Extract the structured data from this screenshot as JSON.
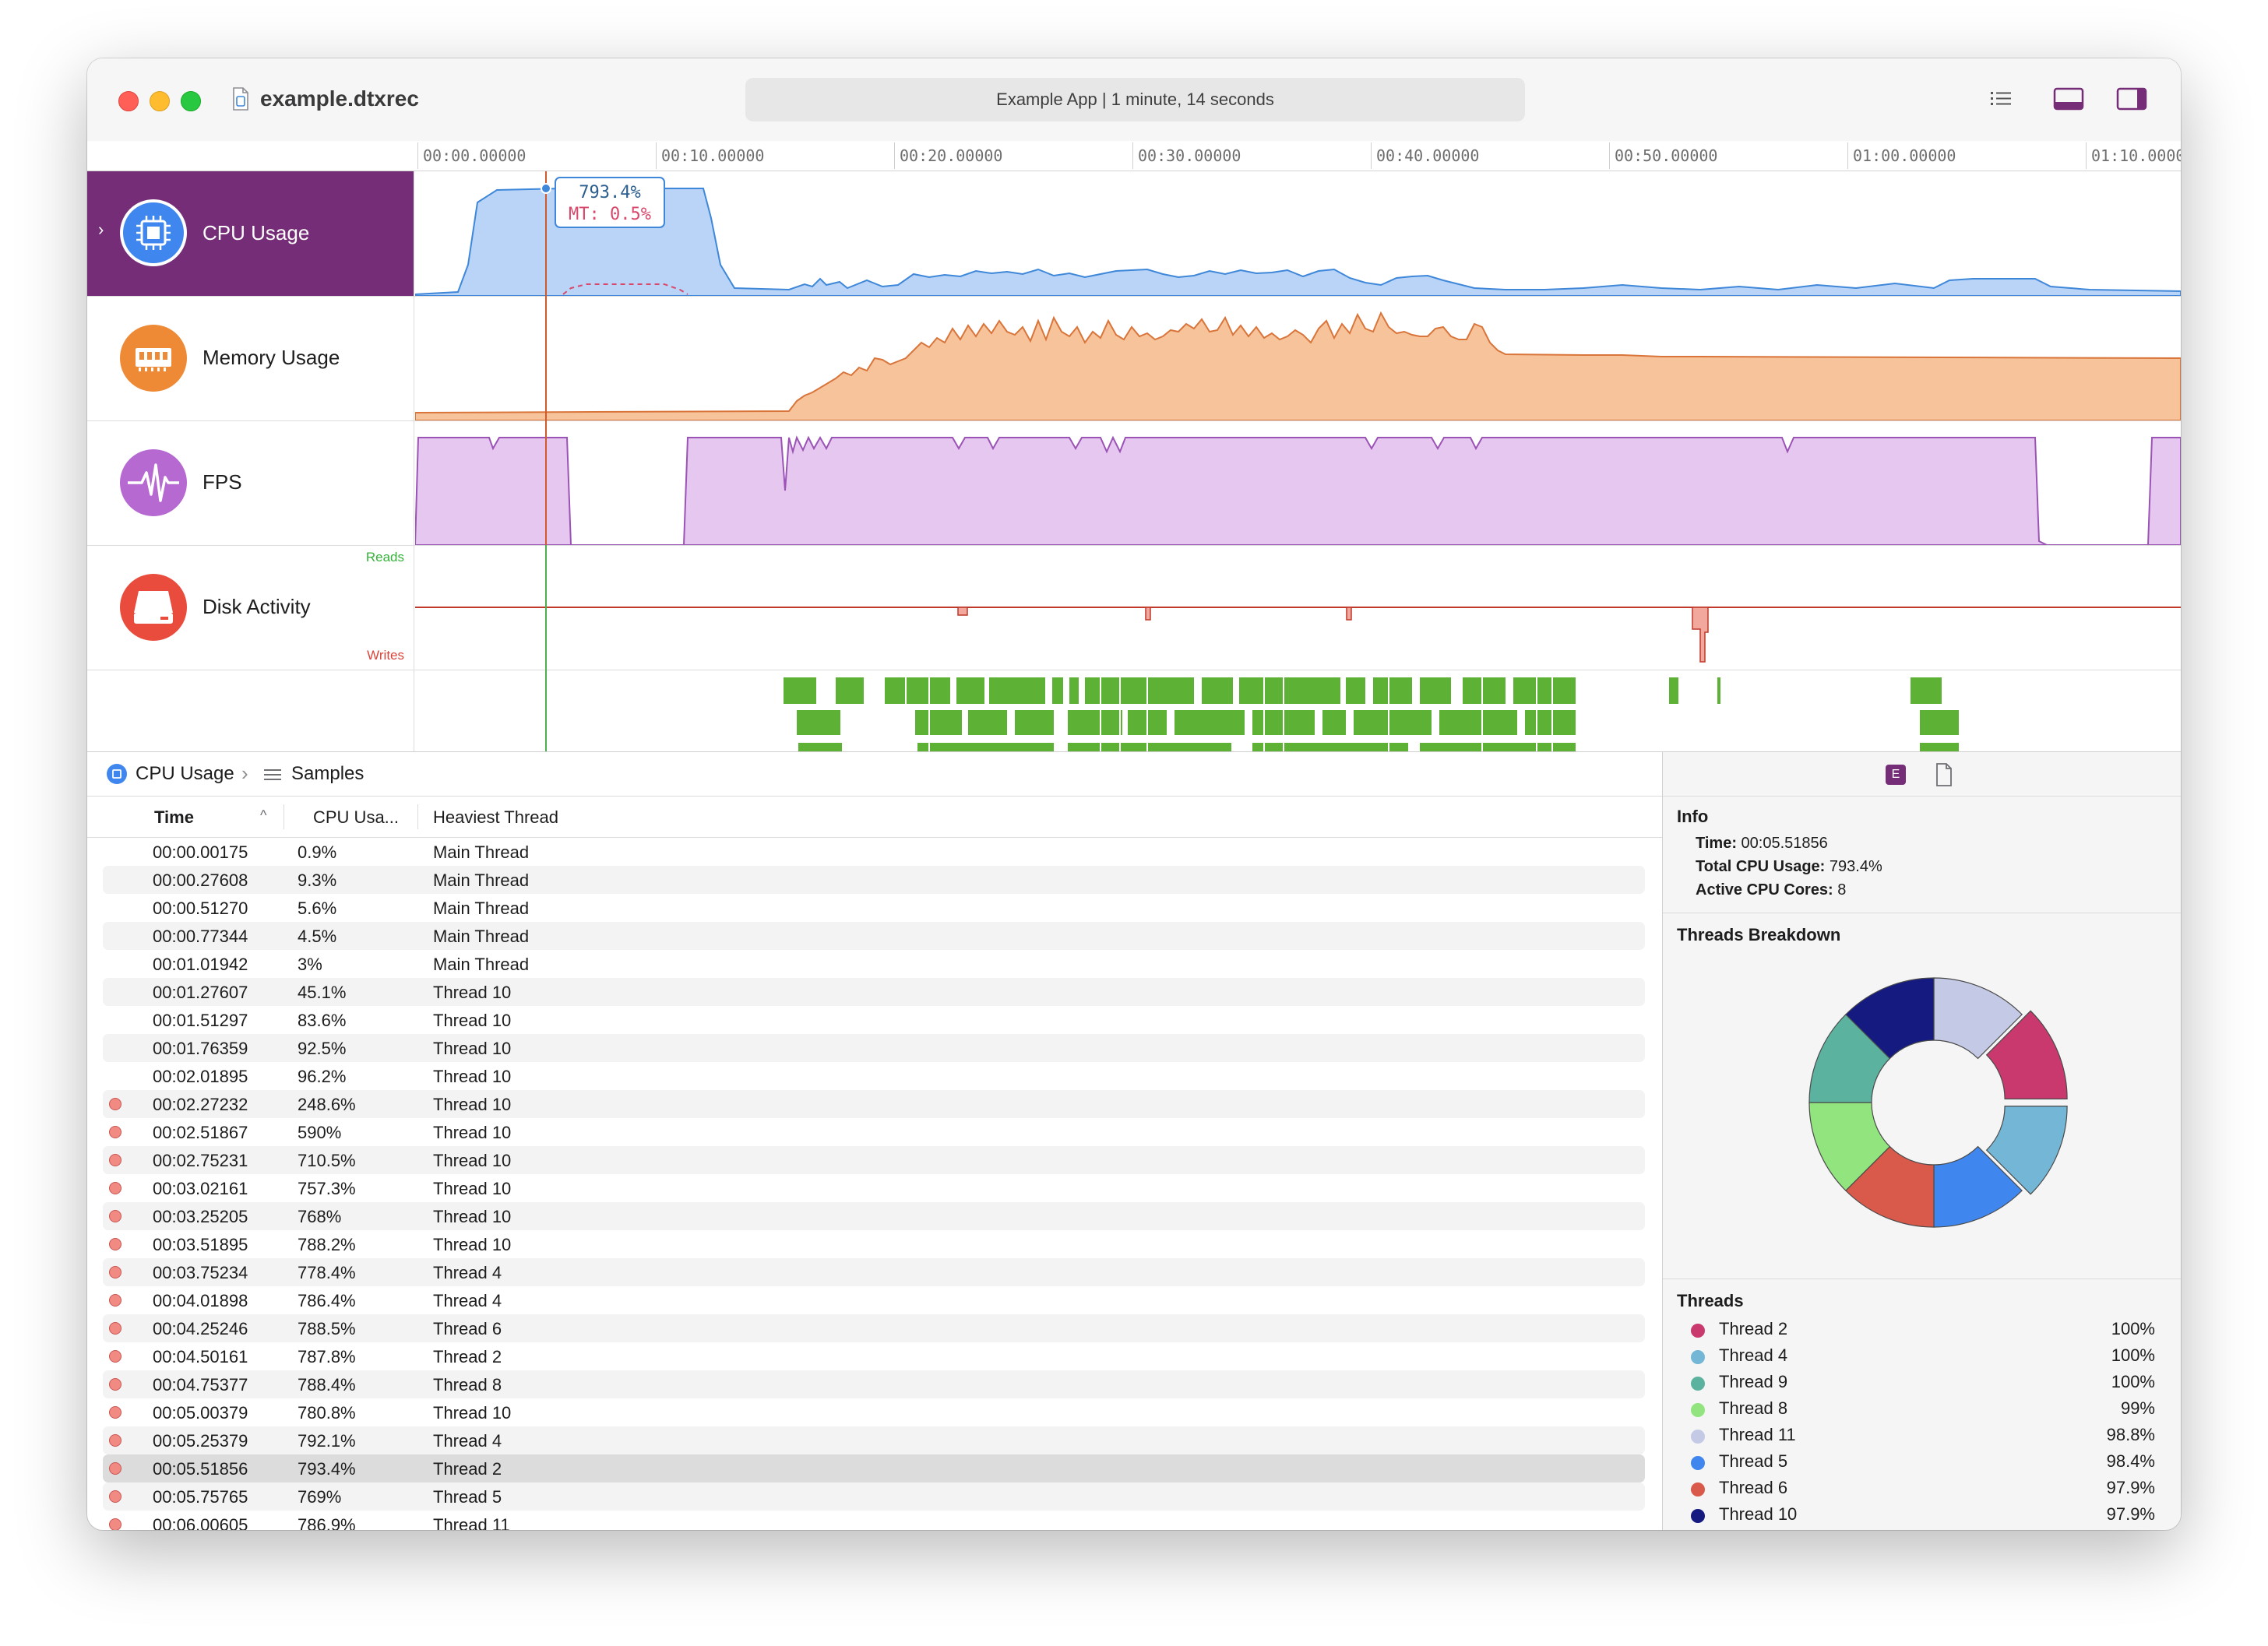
{
  "window": {
    "file_name": "example.dtxrec",
    "status": "Example App | 1 minute, 14 seconds"
  },
  "ruler": {
    "ticks": [
      "00:00.00000",
      "00:10.00000",
      "00:20.00000",
      "00:30.00000",
      "00:40.00000",
      "00:50.00000",
      "01:00.00000",
      "01:10.0000"
    ]
  },
  "tracks": {
    "cpu_label": "CPU Usage",
    "memory_label": "Memory Usage",
    "fps_label": "FPS",
    "disk_label": "Disk Activity",
    "disk_reads": "Reads",
    "disk_writes": "Writes",
    "tooltip_value": "793.4%",
    "tooltip_mt": "MT: 0.5%"
  },
  "breadcrumb": {
    "root": "CPU Usage",
    "child": "Samples"
  },
  "table": {
    "col_time": "Time",
    "col_cpu": "CPU Usa...",
    "col_thread": "Heaviest Thread",
    "rows": [
      {
        "time": "00:00.00175",
        "cpu": "0.9%",
        "thread": "Main Thread",
        "flag": false
      },
      {
        "time": "00:00.27608",
        "cpu": "9.3%",
        "thread": "Main Thread",
        "flag": false
      },
      {
        "time": "00:00.51270",
        "cpu": "5.6%",
        "thread": "Main Thread",
        "flag": false
      },
      {
        "time": "00:00.77344",
        "cpu": "4.5%",
        "thread": "Main Thread",
        "flag": false
      },
      {
        "time": "00:01.01942",
        "cpu": "3%",
        "thread": "Main Thread",
        "flag": false
      },
      {
        "time": "00:01.27607",
        "cpu": "45.1%",
        "thread": "Thread 10",
        "flag": false
      },
      {
        "time": "00:01.51297",
        "cpu": "83.6%",
        "thread": "Thread 10",
        "flag": false
      },
      {
        "time": "00:01.76359",
        "cpu": "92.5%",
        "thread": "Thread 10",
        "flag": false
      },
      {
        "time": "00:02.01895",
        "cpu": "96.2%",
        "thread": "Thread 10",
        "flag": false
      },
      {
        "time": "00:02.27232",
        "cpu": "248.6%",
        "thread": "Thread 10",
        "flag": true
      },
      {
        "time": "00:02.51867",
        "cpu": "590%",
        "thread": "Thread 10",
        "flag": true
      },
      {
        "time": "00:02.75231",
        "cpu": "710.5%",
        "thread": "Thread 10",
        "flag": true
      },
      {
        "time": "00:03.02161",
        "cpu": "757.3%",
        "thread": "Thread 10",
        "flag": true
      },
      {
        "time": "00:03.25205",
        "cpu": "768%",
        "thread": "Thread 10",
        "flag": true
      },
      {
        "time": "00:03.51895",
        "cpu": "788.2%",
        "thread": "Thread 10",
        "flag": true
      },
      {
        "time": "00:03.75234",
        "cpu": "778.4%",
        "thread": "Thread 4",
        "flag": true
      },
      {
        "time": "00:04.01898",
        "cpu": "786.4%",
        "thread": "Thread 4",
        "flag": true
      },
      {
        "time": "00:04.25246",
        "cpu": "788.5%",
        "thread": "Thread 6",
        "flag": true
      },
      {
        "time": "00:04.50161",
        "cpu": "787.8%",
        "thread": "Thread 2",
        "flag": true
      },
      {
        "time": "00:04.75377",
        "cpu": "788.4%",
        "thread": "Thread 8",
        "flag": true
      },
      {
        "time": "00:05.00379",
        "cpu": "780.8%",
        "thread": "Thread 10",
        "flag": true
      },
      {
        "time": "00:05.25379",
        "cpu": "792.1%",
        "thread": "Thread 4",
        "flag": true
      },
      {
        "time": "00:05.51856",
        "cpu": "793.4%",
        "thread": "Thread 2",
        "flag": true,
        "selected": true
      },
      {
        "time": "00:05.75765",
        "cpu": "769%",
        "thread": "Thread 5",
        "flag": true
      },
      {
        "time": "00:06.00605",
        "cpu": "786.9%",
        "thread": "Thread 11",
        "flag": true
      }
    ]
  },
  "inspector": {
    "info_title": "Info",
    "time_label": "Time:",
    "time_value": "00:05.51856",
    "total_label": "Total CPU Usage:",
    "total_value": "793.4%",
    "cores_label": "Active CPU Cores:",
    "cores_value": "8",
    "breakdown_title": "Threads Breakdown",
    "threads_title": "Threads",
    "threads": [
      {
        "name": "Thread 2",
        "pct": "100%",
        "color": "#c9396e"
      },
      {
        "name": "Thread 4",
        "pct": "100%",
        "color": "#74b6d6"
      },
      {
        "name": "Thread 9",
        "pct": "100%",
        "color": "#5bb39f"
      },
      {
        "name": "Thread 8",
        "pct": "99%",
        "color": "#92e47f"
      },
      {
        "name": "Thread 11",
        "pct": "98.8%",
        "color": "#c4cae6"
      },
      {
        "name": "Thread 5",
        "pct": "98.4%",
        "color": "#3f87ef"
      },
      {
        "name": "Thread 6",
        "pct": "97.9%",
        "color": "#d9594a"
      },
      {
        "name": "Thread 10",
        "pct": "97.9%",
        "color": "#141a80"
      }
    ],
    "donut_order": [
      "Thread 11",
      "Thread 2",
      "Thread 4",
      "Thread 5",
      "Thread 6",
      "Thread 8",
      "Thread 9",
      "Thread 10"
    ]
  },
  "colors": {
    "cpu_fill": "#b9d4f6",
    "cpu_line": "#3f87d9",
    "memory_fill": "#f6c39b",
    "memory_line": "#d9753a",
    "fps_fill": "#e6c7ef",
    "fps_line": "#9b53b6",
    "disk_line": "#c0392b",
    "selected_track": "#742d76",
    "activity_green": "#5db135"
  },
  "icons": {
    "cpu": "cpu-chip-icon",
    "memory": "memory-ram-icon",
    "fps": "fps-waveform-icon",
    "disk": "disk-drive-icon"
  }
}
